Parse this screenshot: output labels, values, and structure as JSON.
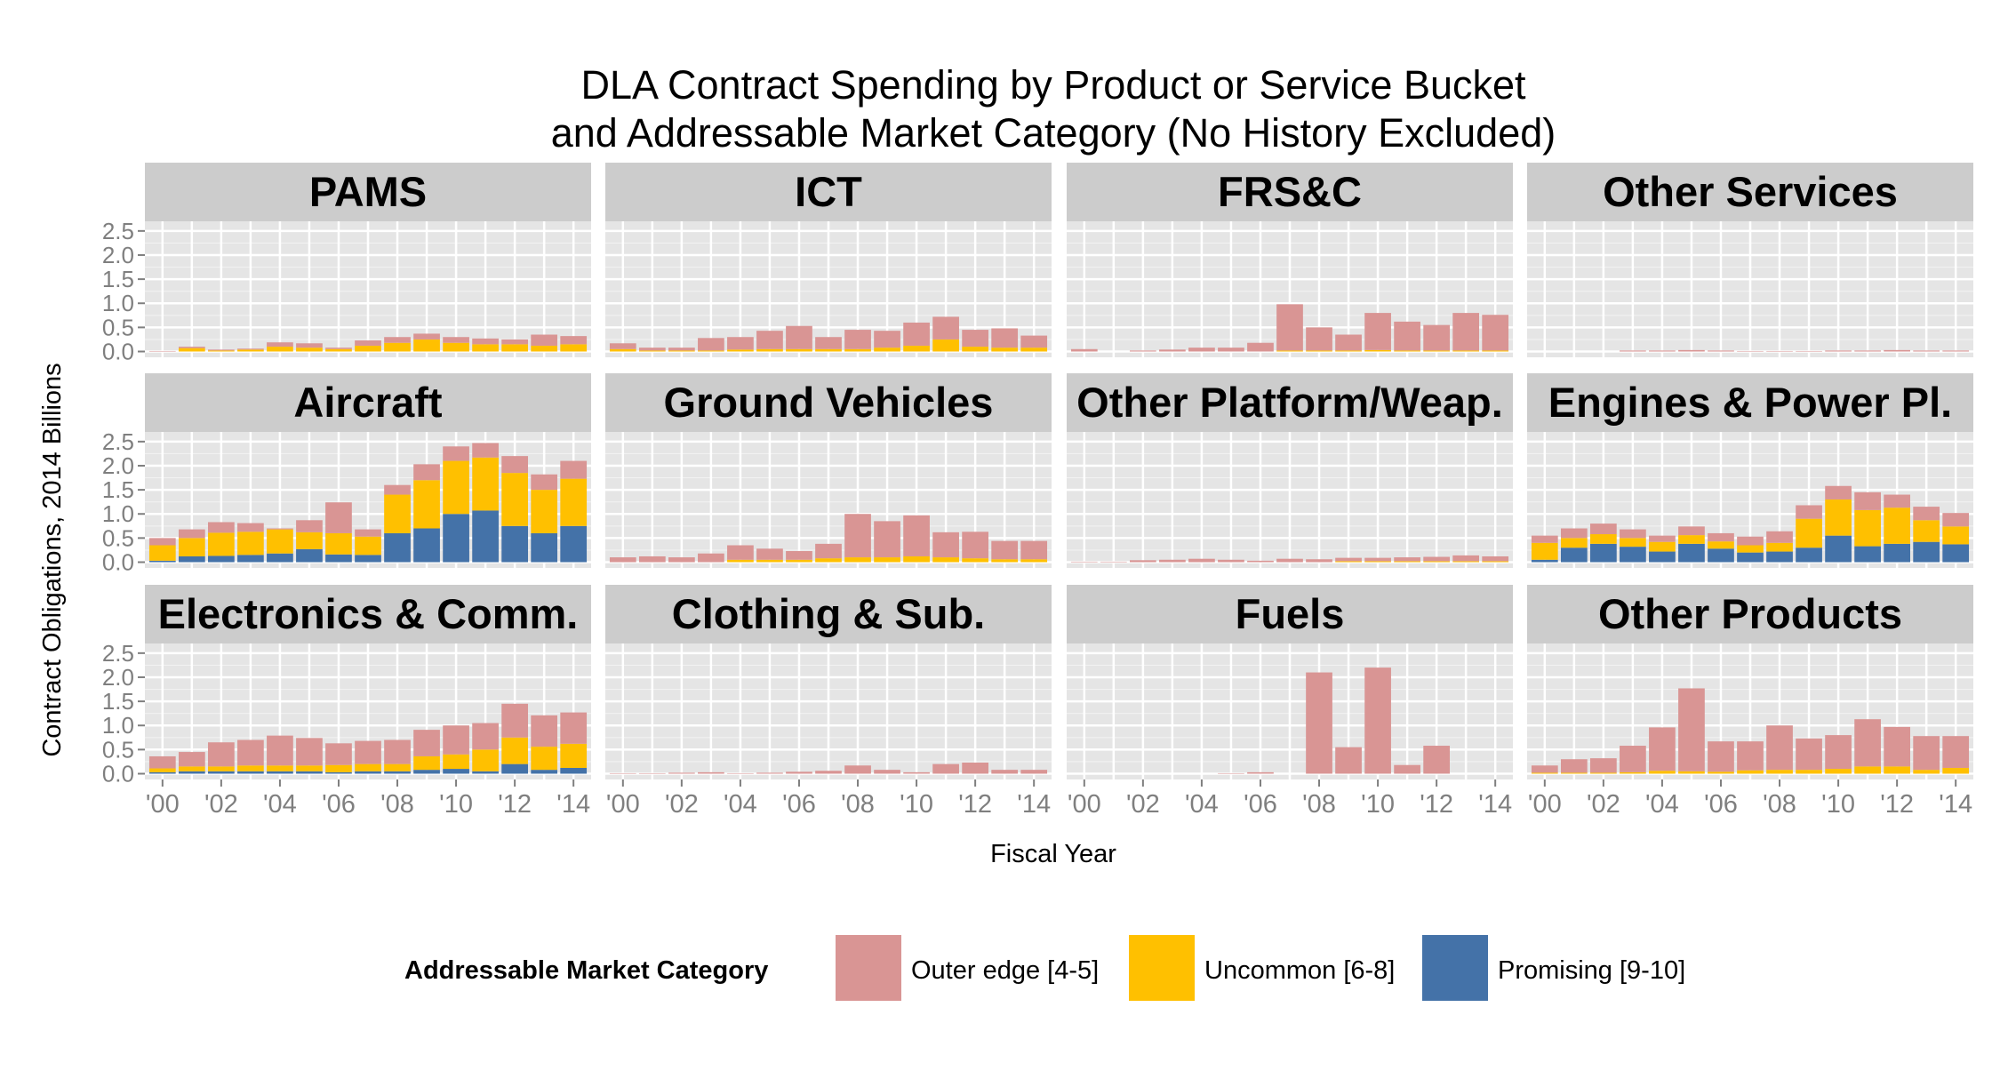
{
  "chart_data": {
    "type": "bar",
    "stacked": true,
    "title": "DLA Contract Spending by Product or Service Bucket\nand Addressable Market Category (No History Excluded)",
    "xlabel": "Fiscal Year",
    "ylabel": "Contract Obligations, 2014 Billions",
    "ylim": [
      0,
      2.5
    ],
    "yticks": [
      "0.0",
      "0.5",
      "1.0",
      "1.5",
      "2.0",
      "2.5"
    ],
    "xtick_labels": [
      "'00",
      "'02",
      "'04",
      "'06",
      "'08",
      "'10",
      "'12",
      "'14"
    ],
    "x": [
      2000,
      2001,
      2002,
      2003,
      2004,
      2005,
      2006,
      2007,
      2008,
      2009,
      2010,
      2011,
      2012,
      2013,
      2014
    ],
    "grid": true,
    "legend": {
      "title": "Addressable Market Category",
      "position": "bottom",
      "entries": [
        {
          "label": "Outer edge [4-5]",
          "color": "#D99594"
        },
        {
          "label": "Uncommon [6-8]",
          "color": "#FFC000"
        },
        {
          "label": "Promising [9-10]",
          "color": "#4472A8"
        }
      ]
    },
    "colors": {
      "outer": "#D99594",
      "uncommon": "#FFC000",
      "promising": "#4472A8",
      "strip": "#CCCCCC",
      "panel": "#E5E5E5"
    },
    "panels": [
      {
        "name": "PAMS",
        "promising": [
          0,
          0,
          0,
          0,
          0,
          0,
          0,
          0,
          0,
          0,
          0,
          0,
          0,
          0,
          0
        ],
        "uncommon": [
          0,
          0.07,
          0.02,
          0.04,
          0.1,
          0.08,
          0.05,
          0.12,
          0.18,
          0.25,
          0.18,
          0.15,
          0.15,
          0.12,
          0.15
        ],
        "outer": [
          0.01,
          0.03,
          0.02,
          0.02,
          0.09,
          0.09,
          0.03,
          0.11,
          0.12,
          0.12,
          0.12,
          0.12,
          0.1,
          0.23,
          0.17
        ]
      },
      {
        "name": "ICT",
        "promising": [
          0,
          0,
          0,
          0,
          0,
          0,
          0,
          0,
          0,
          0,
          0,
          0,
          0,
          0,
          0
        ],
        "uncommon": [
          0.05,
          0.02,
          0.02,
          0.02,
          0.04,
          0.05,
          0.05,
          0.05,
          0.05,
          0.08,
          0.12,
          0.25,
          0.1,
          0.08,
          0.08
        ],
        "outer": [
          0.12,
          0.06,
          0.06,
          0.26,
          0.26,
          0.38,
          0.48,
          0.25,
          0.4,
          0.35,
          0.48,
          0.47,
          0.35,
          0.4,
          0.25
        ]
      },
      {
        "name": "FRS&C",
        "promising": [
          0,
          0,
          0,
          0,
          0,
          0,
          0,
          0,
          0,
          0,
          0,
          0,
          0,
          0,
          0
        ],
        "uncommon": [
          0,
          0,
          0,
          0,
          0,
          0,
          0,
          0.02,
          0.02,
          0.02,
          0.03,
          0.02,
          0.02,
          0.02,
          0.02
        ],
        "outer": [
          0.05,
          0,
          0.02,
          0.04,
          0.08,
          0.08,
          0.18,
          0.96,
          0.48,
          0.33,
          0.77,
          0.6,
          0.53,
          0.78,
          0.74
        ]
      },
      {
        "name": "Other Services",
        "promising": [
          0,
          0,
          0,
          0,
          0,
          0,
          0,
          0,
          0,
          0,
          0,
          0,
          0,
          0,
          0
        ],
        "uncommon": [
          0,
          0,
          0,
          0,
          0,
          0,
          0,
          0,
          0,
          0,
          0,
          0,
          0,
          0,
          0
        ],
        "outer": [
          0,
          0,
          0,
          0.02,
          0.02,
          0.03,
          0.02,
          0.01,
          0.01,
          0.01,
          0.02,
          0.02,
          0.03,
          0.02,
          0.02
        ]
      },
      {
        "name": "Aircraft",
        "promising": [
          0.03,
          0.12,
          0.13,
          0.15,
          0.18,
          0.27,
          0.16,
          0.15,
          0.6,
          0.7,
          1.0,
          1.07,
          0.75,
          0.6,
          0.75
        ],
        "uncommon": [
          0.32,
          0.38,
          0.48,
          0.48,
          0.5,
          0.35,
          0.44,
          0.38,
          0.8,
          1.0,
          1.1,
          1.1,
          1.1,
          0.9,
          0.98
        ],
        "outer": [
          0.15,
          0.18,
          0.22,
          0.18,
          0.02,
          0.25,
          0.64,
          0.15,
          0.2,
          0.33,
          0.3,
          0.3,
          0.35,
          0.32,
          0.37
        ]
      },
      {
        "name": "Ground Vehicles",
        "promising": [
          0,
          0,
          0,
          0,
          0,
          0,
          0,
          0,
          0,
          0,
          0,
          0,
          0,
          0,
          0
        ],
        "uncommon": [
          0,
          0,
          0,
          0,
          0.05,
          0.05,
          0.05,
          0.08,
          0.1,
          0.1,
          0.12,
          0.1,
          0.08,
          0.06,
          0.06
        ],
        "outer": [
          0.1,
          0.12,
          0.1,
          0.18,
          0.3,
          0.23,
          0.18,
          0.3,
          0.9,
          0.75,
          0.85,
          0.52,
          0.55,
          0.38,
          0.38
        ]
      },
      {
        "name": "Other Platform/Weap.",
        "promising": [
          0,
          0,
          0,
          0,
          0,
          0,
          0,
          0,
          0,
          0,
          0,
          0,
          0,
          0,
          0
        ],
        "uncommon": [
          0,
          0,
          0,
          0,
          0,
          0,
          0,
          0,
          0,
          0.02,
          0.02,
          0.02,
          0.02,
          0.02,
          0.02
        ],
        "outer": [
          0.01,
          0.01,
          0.04,
          0.05,
          0.07,
          0.05,
          0.03,
          0.07,
          0.06,
          0.07,
          0.07,
          0.08,
          0.09,
          0.12,
          0.1
        ]
      },
      {
        "name": "Engines & Power Pl.",
        "promising": [
          0.05,
          0.3,
          0.38,
          0.32,
          0.22,
          0.38,
          0.28,
          0.2,
          0.22,
          0.3,
          0.55,
          0.33,
          0.38,
          0.42,
          0.37
        ],
        "uncommon": [
          0.35,
          0.2,
          0.2,
          0.18,
          0.2,
          0.18,
          0.15,
          0.15,
          0.18,
          0.6,
          0.75,
          0.75,
          0.75,
          0.45,
          0.37
        ],
        "outer": [
          0.15,
          0.2,
          0.22,
          0.18,
          0.13,
          0.18,
          0.17,
          0.18,
          0.24,
          0.28,
          0.28,
          0.37,
          0.27,
          0.28,
          0.28
        ]
      },
      {
        "name": "Electronics & Comm.",
        "promising": [
          0.03,
          0.05,
          0.05,
          0.05,
          0.05,
          0.05,
          0.03,
          0.05,
          0.05,
          0.08,
          0.1,
          0.05,
          0.2,
          0.08,
          0.12
        ],
        "uncommon": [
          0.08,
          0.1,
          0.1,
          0.12,
          0.12,
          0.12,
          0.15,
          0.15,
          0.15,
          0.28,
          0.3,
          0.45,
          0.55,
          0.48,
          0.5
        ],
        "outer": [
          0.25,
          0.3,
          0.5,
          0.53,
          0.62,
          0.57,
          0.45,
          0.48,
          0.5,
          0.55,
          0.6,
          0.55,
          0.7,
          0.65,
          0.65
        ]
      },
      {
        "name": "Clothing & Sub.",
        "promising": [
          0,
          0,
          0,
          0,
          0,
          0,
          0,
          0,
          0,
          0,
          0,
          0,
          0,
          0,
          0
        ],
        "uncommon": [
          0,
          0,
          0,
          0,
          0,
          0,
          0,
          0,
          0,
          0,
          0,
          0,
          0,
          0,
          0
        ],
        "outer": [
          0.01,
          0.01,
          0.02,
          0.03,
          0.01,
          0.02,
          0.04,
          0.06,
          0.17,
          0.08,
          0.03,
          0.2,
          0.23,
          0.08,
          0.08
        ]
      },
      {
        "name": "Fuels",
        "promising": [
          0,
          0,
          0,
          0,
          0,
          0,
          0,
          0,
          0,
          0,
          0,
          0,
          0,
          0,
          0
        ],
        "uncommon": [
          0,
          0,
          0,
          0,
          0,
          0,
          0,
          0,
          0,
          0,
          0,
          0,
          0,
          0,
          0
        ],
        "outer": [
          0,
          0,
          0,
          0,
          0,
          0.01,
          0.03,
          0,
          2.1,
          0.55,
          2.2,
          0.18,
          0.58,
          0,
          0
        ]
      },
      {
        "name": "Other Products",
        "promising": [
          0,
          0,
          0,
          0,
          0,
          0,
          0,
          0,
          0,
          0,
          0,
          0,
          0,
          0,
          0
        ],
        "uncommon": [
          0.02,
          0.02,
          0.02,
          0.03,
          0.06,
          0.05,
          0.04,
          0.07,
          0.08,
          0.08,
          0.1,
          0.15,
          0.15,
          0.08,
          0.12
        ],
        "outer": [
          0.15,
          0.28,
          0.3,
          0.55,
          0.9,
          1.72,
          0.63,
          0.6,
          0.92,
          0.65,
          0.7,
          0.98,
          0.82,
          0.7,
          0.66
        ]
      }
    ]
  }
}
